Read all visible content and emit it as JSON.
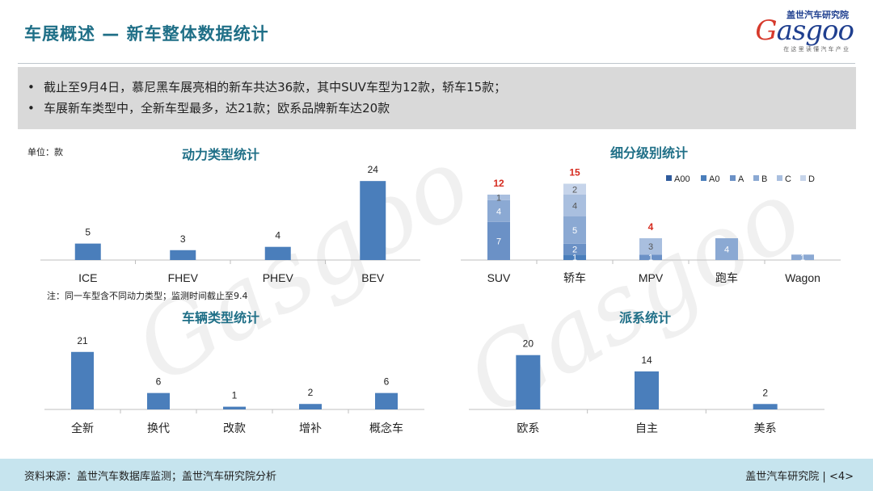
{
  "header": {
    "title": "车展概述 — 新车整体数据统计",
    "logo_top": "盖世汽车研究院",
    "logo_text": "asgoo",
    "logo_g": "G",
    "logo_sub": "在 这 里 读 懂 汽 车 产 业"
  },
  "summary": {
    "items": [
      "截止至9月4日，慕尼黑车展亮相的新车共达36款，其中SUV车型为12款，轿车15款；",
      "车展新车类型中，全新车型最多，达21款；欧系品牌新车达20款"
    ]
  },
  "unit_label": "单位：款",
  "note": "注：同一车型含不同动力类型；监测时间截止至9.4",
  "colors": {
    "bar": "#4a7ebb",
    "A00": "#2f5b9c",
    "A0": "#4a7ebb",
    "A": "#6b91c6",
    "B": "#8ba9d3",
    "C": "#a9bfdf",
    "D": "#c6d4ea",
    "total_red": "#d62b1f",
    "axis": "#bfbfbf"
  },
  "chart_data": [
    {
      "id": "power",
      "type": "bar",
      "title": "动力类型统计",
      "categories": [
        "ICE",
        "FHEV",
        "PHEV",
        "BEV"
      ],
      "values": [
        5,
        3,
        4,
        24
      ],
      "ylim": [
        0,
        26
      ]
    },
    {
      "id": "segment",
      "type": "bar",
      "stacked": true,
      "title": "细分级别统计",
      "categories": [
        "SUV",
        "轿车",
        "MPV",
        "跑车",
        "Wagon"
      ],
      "series": [
        {
          "name": "A00",
          "values": [
            0,
            0,
            0,
            0,
            0
          ]
        },
        {
          "name": "A0",
          "values": [
            0,
            1,
            0,
            0,
            0
          ]
        },
        {
          "name": "A",
          "values": [
            7,
            2,
            1,
            0,
            0
          ]
        },
        {
          "name": "B",
          "values": [
            4,
            5,
            0,
            4,
            1
          ]
        },
        {
          "name": "C",
          "values": [
            1,
            4,
            3,
            0,
            0
          ]
        },
        {
          "name": "D",
          "values": [
            0,
            2,
            0,
            0,
            0
          ]
        }
      ],
      "totals": [
        "12",
        "15",
        "4",
        "",
        ""
      ],
      "legend": "top-right",
      "ylim": [
        0,
        16
      ]
    },
    {
      "id": "vehicle",
      "type": "bar",
      "title": "车辆类型统计",
      "categories": [
        "全新",
        "换代",
        "改款",
        "增补",
        "概念车"
      ],
      "values": [
        21,
        6,
        1,
        2,
        6
      ],
      "ylim": [
        0,
        23
      ]
    },
    {
      "id": "origin",
      "type": "bar",
      "title": "派系统计",
      "categories": [
        "欧系",
        "自主",
        "美系"
      ],
      "values": [
        20,
        14,
        2
      ],
      "ylim": [
        0,
        22
      ]
    }
  ],
  "footer": {
    "source": "资料来源：盖世汽车数据库监测；盖世汽车研究院分析",
    "brand": "盖世汽车研究院 | <4>"
  }
}
